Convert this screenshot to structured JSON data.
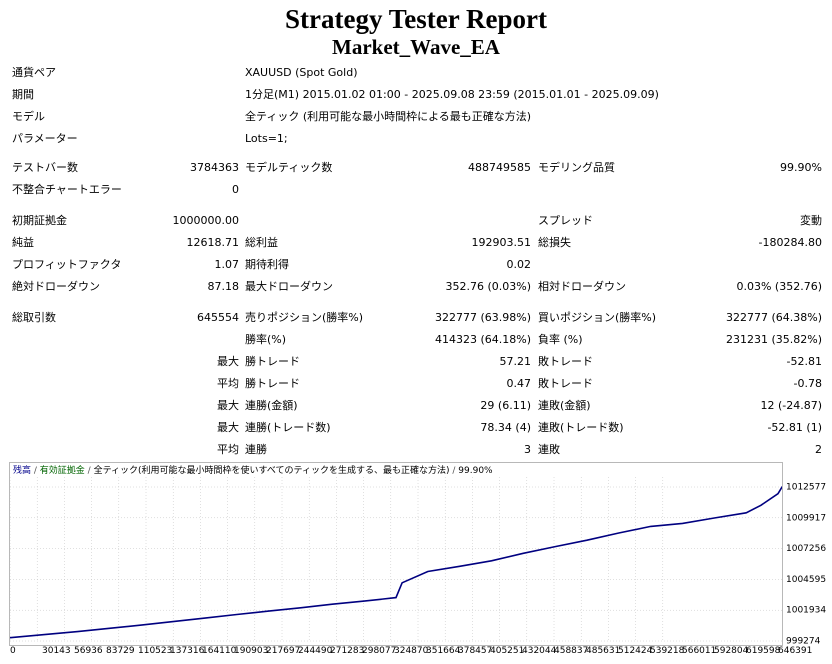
{
  "report": {
    "title": "Strategy Tester Report",
    "subtitle": "Market_Wave_EA"
  },
  "info": [
    {
      "label": "通貨ペア",
      "value": "XAUUSD (Spot Gold)"
    },
    {
      "label": "期間",
      "value": "1分足(M1) 2015.01.02 01:00 - 2025.09.08 23:59 (2015.01.01 - 2025.09.09)"
    },
    {
      "label": "モデル",
      "value": "全ティック (利用可能な最小時間枠による最も正確な方法)"
    },
    {
      "label": "パラメーター",
      "value": "Lots=1;"
    }
  ],
  "stats": {
    "bars_label": "テストバー数",
    "bars": "3784363",
    "ticks_label": "モデルティック数",
    "ticks": "488749585",
    "quality_label": "モデリング品質",
    "quality": "99.90%",
    "mismatch_label": "不整合チャートエラー",
    "mismatch": "0",
    "deposit_label": "初期証拠金",
    "deposit": "1000000.00",
    "spread_label": "スプレッド",
    "spread": "変動",
    "net_label": "純益",
    "net": "12618.71",
    "gross_profit_label": "総利益",
    "gross_profit": "192903.51",
    "gross_loss_label": "総損失",
    "gross_loss": "-180284.80",
    "pf_label": "プロフィットファクタ",
    "pf": "1.07",
    "expected_label": "期待利得",
    "expected": "0.02",
    "abs_dd_label": "絶対ドローダウン",
    "abs_dd": "87.18",
    "max_dd_label": "最大ドローダウン",
    "max_dd": "352.76 (0.03%)",
    "rel_dd_label": "相対ドローダウン",
    "rel_dd": "0.03% (352.76)",
    "total_trades_label": "総取引数",
    "total_trades": "645554",
    "short_label": "売りポジション(勝率%)",
    "short": "322777 (63.98%)",
    "long_label": "買いポジション(勝率%)",
    "long": "322777 (64.38%)",
    "win_pct_label": "勝率(%)",
    "win_pct": "414323 (64.18%)",
    "loss_pct_label": "負率 (%)",
    "loss_pct": "231231 (35.82%)",
    "max_label": "最大",
    "avg_label": "平均",
    "largest_win_label": "勝トレード",
    "largest_win": "57.21",
    "largest_loss_label": "敗トレード",
    "largest_loss": "-52.81",
    "avg_win_label": "勝トレード",
    "avg_win": "0.47",
    "avg_loss_label": "敗トレード",
    "avg_loss": "-0.78",
    "max_consec_wins_label": "連勝(金額)",
    "max_consec_wins": "29 (6.11)",
    "max_consec_losses_label": "連敗(金額)",
    "max_consec_losses": "12 (-24.87)",
    "max_consec_profit_label": "連勝(トレード数)",
    "max_consec_profit": "78.34 (4)",
    "max_consec_loss_label": "連敗(トレード数)",
    "max_consec_loss": "-52.81 (1)",
    "avg_consec_wins_label": "連勝",
    "avg_consec_wins": "3",
    "avg_consec_losses_label": "連敗",
    "avg_consec_losses": "2"
  },
  "legend": {
    "balance": "残高",
    "equity": "有効証拠金",
    "model": "全ティック(利用可能な最小時間枠を使いすべてのティックを生成する、最も正確な方法)",
    "quality": "99.90%"
  },
  "colors": {
    "balance_line": "#000080",
    "legend_balance": "#00008b",
    "legend_equity": "#006400",
    "grid": "#c0c0c0"
  },
  "chart_data": {
    "type": "line",
    "series": [
      {
        "name": "残高",
        "x": [
          0,
          30143,
          56936,
          83729,
          110523,
          137316,
          164110,
          190903,
          217697,
          244490,
          271283,
          298077,
          324870,
          330000,
          351664,
          378457,
          405251,
          432044,
          458837,
          485631,
          512424,
          539218,
          566011,
          592804,
          619598,
          632000,
          646391,
          650000
        ],
        "y": [
          999562,
          999840,
          1000090,
          1000370,
          1000650,
          1000950,
          1001250,
          1001560,
          1001860,
          1002140,
          1002450,
          1002720,
          1003020,
          1004300,
          1005280,
          1005730,
          1006200,
          1006850,
          1007430,
          1007980,
          1008600,
          1009170,
          1009430,
          1009900,
          1010350,
          1011000,
          1012000,
          1012618
        ]
      }
    ],
    "x_ticks": [
      "0",
      "30143",
      "56936",
      "83729",
      "110523",
      "137316",
      "164110",
      "190903",
      "217697",
      "244490",
      "271283",
      "298077",
      "324870",
      "351664",
      "378457",
      "405251",
      "432044",
      "458837",
      "485631",
      "512424",
      "539218",
      "566011",
      "592804",
      "619598",
      "646391"
    ],
    "y_ticks": [
      "999274",
      "1001934",
      "1004595",
      "1007256",
      "1009917",
      "1012577"
    ],
    "ylim": [
      999274,
      1012577
    ],
    "xlim": [
      0,
      646391
    ],
    "grid": true
  }
}
